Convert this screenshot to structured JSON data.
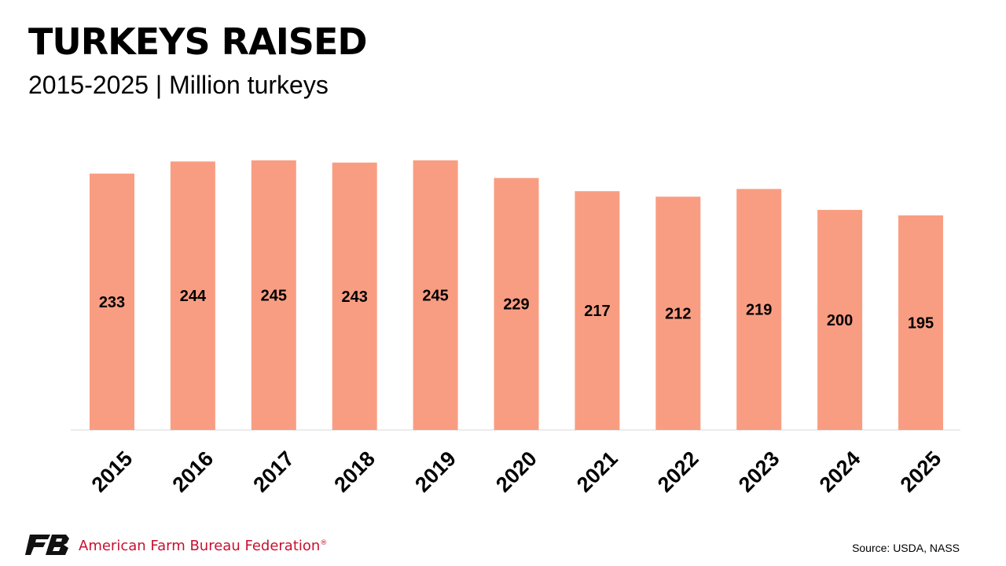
{
  "header": {
    "title": "TURKEYS RAISED",
    "subtitle": "2015-2025 | Million turkeys"
  },
  "chart_data": {
    "type": "bar",
    "title": "TURKEYS RAISED",
    "subtitle": "2015-2025 | Million turkeys",
    "categories": [
      "2015",
      "2016",
      "2017",
      "2018",
      "2019",
      "2020",
      "2021",
      "2022",
      "2023",
      "2024",
      "2025"
    ],
    "values": [
      233,
      244,
      245,
      243,
      245,
      229,
      217,
      212,
      219,
      200,
      195
    ],
    "data_labels": [
      "233",
      "244",
      "245",
      "243",
      "245",
      "229",
      "217",
      "212",
      "219",
      "200",
      "195"
    ],
    "xlabel": "",
    "ylabel": "",
    "ylim": [
      0,
      245
    ],
    "grid": false,
    "bar_color": "#F99D82"
  },
  "footer": {
    "organization": "American Farm Bureau Federation",
    "registered_mark": "®",
    "source": "Source: USDA, NASS",
    "brand_color": "#C8102E"
  }
}
